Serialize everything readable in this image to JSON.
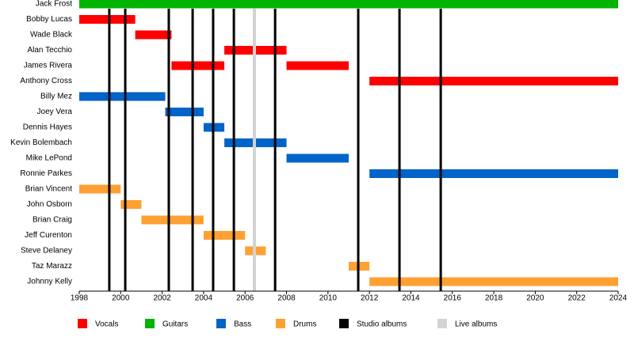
{
  "chart_data": {
    "type": "timeline",
    "categories": [
      "Jack Frost",
      "Bobby Lucas",
      "Wade Black",
      "Alan Tecchio",
      "James Rivera",
      "Anthony Cross",
      "Billy Mez",
      "Joey Vera",
      "Dennis Hayes",
      "Kevin Bolembach",
      "Mike LePond",
      "Ronnie Parkes",
      "Brian Vincent",
      "John Osborn",
      "Brian Craig",
      "Jeff Curenton",
      "Steve Delaney",
      "Taz Marazz",
      "Johnny Kelly"
    ],
    "series": [
      {
        "name": "Vocals",
        "color": "#ff0000",
        "values": [
          null,
          [
            [
              1998,
              2000.7
            ]
          ],
          [
            [
              2000.7,
              2002.45
            ]
          ],
          [
            [
              2005,
              2008
            ]
          ],
          [
            [
              2002.45,
              2005
            ],
            [
              2008,
              2011
            ]
          ],
          [
            [
              2012,
              2024
            ]
          ],
          null,
          null,
          null,
          null,
          null,
          null,
          null,
          null,
          null,
          null,
          null,
          null,
          null
        ]
      },
      {
        "name": "Guitars",
        "color": "#00b400",
        "values": [
          [
            [
              1998,
              2024
            ]
          ],
          null,
          null,
          null,
          null,
          null,
          null,
          null,
          null,
          null,
          null,
          null,
          null,
          null,
          null,
          null,
          null,
          null,
          null
        ]
      },
      {
        "name": "Bass",
        "color": "#0064c8",
        "values": [
          null,
          null,
          null,
          null,
          null,
          null,
          [
            [
              1998,
              2002.15
            ]
          ],
          [
            [
              2002.15,
              2004
            ]
          ],
          [
            [
              2004,
              2005
            ]
          ],
          [
            [
              2005,
              2008
            ]
          ],
          [
            [
              2008,
              2011
            ]
          ],
          [
            [
              2012,
              2024
            ]
          ],
          null,
          null,
          null,
          null,
          null,
          null,
          null
        ]
      },
      {
        "name": "Drums",
        "color": "#ffa032",
        "values": [
          null,
          null,
          null,
          null,
          null,
          null,
          null,
          null,
          null,
          null,
          null,
          null,
          [
            [
              1998,
              2000
            ]
          ],
          [
            [
              2000,
              2001
            ]
          ],
          [
            [
              2001,
              2004
            ]
          ],
          [
            [
              2004,
              2006
            ]
          ],
          [
            [
              2006,
              2007
            ]
          ],
          [
            [
              2011,
              2012
            ]
          ],
          [
            [
              2012,
              2024
            ]
          ]
        ]
      }
    ],
    "markers": [
      {
        "name": "Studio albums",
        "color": "#000000",
        "values": [
          1999.45,
          2000.22,
          2002.32,
          2003.47,
          2004.46,
          2005.46,
          2007.45,
          2011.46,
          2013.45,
          2015.44
        ]
      },
      {
        "name": "Live albums",
        "color": "#d3d3d3",
        "values": [
          2006.45
        ]
      }
    ],
    "xlim": [
      1998,
      2024
    ],
    "xticks": [
      1998,
      2000,
      2002,
      2004,
      2006,
      2008,
      2010,
      2012,
      2014,
      2016,
      2018,
      2020,
      2022,
      2024
    ]
  }
}
